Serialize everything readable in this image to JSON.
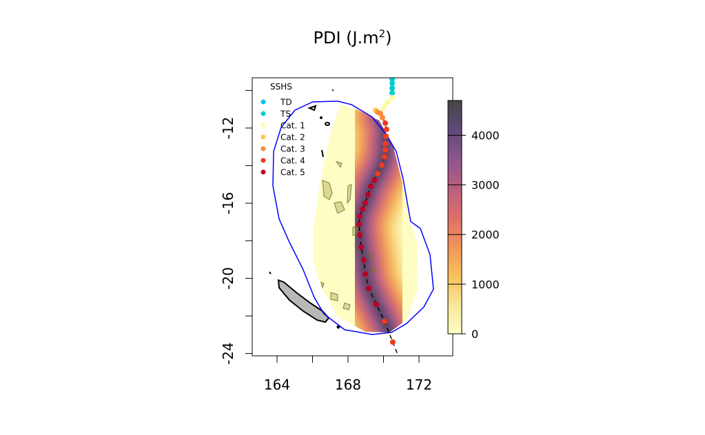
{
  "chart_data": {
    "type": "map",
    "title": "PDI (J.m",
    "title_superscript": "2",
    "title_suffix": ")",
    "xlim": [
      162.6,
      173.9
    ],
    "ylim": [
      -24.1,
      -9.3
    ],
    "x_ticks": [
      164,
      166,
      168,
      170,
      172
    ],
    "x_tick_labels": [
      "164",
      "168",
      "172"
    ],
    "x_tick_label_values": [
      164,
      168,
      172
    ],
    "y_ticks": [
      -10,
      -12,
      -14,
      -16,
      -18,
      -20,
      -22,
      -24
    ],
    "y_tick_labels": [
      "-12",
      "-16",
      "-20",
      "-24"
    ],
    "y_tick_label_values": [
      -12,
      -16,
      -20,
      -24
    ],
    "colorbar": {
      "range": [
        0,
        4700
      ],
      "ticks": [
        0,
        1000,
        2000,
        3000,
        4000
      ],
      "tick_labels": [
        "0",
        "1000",
        "2000",
        "3000",
        "4000"
      ],
      "colors": [
        "#fdfdc4",
        "#f9e79a",
        "#f8c05a",
        "#f0955a",
        "#dd6e6a",
        "#b85f80",
        "#8c5590",
        "#5f4a78",
        "#3c3c3c"
      ]
    },
    "legend": {
      "title": "SSHS",
      "position": "top-left",
      "entries": [
        {
          "label": "TD",
          "color": "#00c5f0"
        },
        {
          "label": "TS",
          "color": "#00cdcd"
        },
        {
          "label": "Cat. 1",
          "color": "#fdfaa8"
        },
        {
          "label": "Cat. 2",
          "color": "#fec94d"
        },
        {
          "label": "Cat. 3",
          "color": "#fd8d3c"
        },
        {
          "label": "Cat. 4",
          "color": "#f03b20"
        },
        {
          "label": "Cat. 5",
          "color": "#bd0026"
        }
      ]
    },
    "envelope_color": "#0000ff",
    "track": [
      {
        "lon": 170.49,
        "lat": -9.4,
        "cat": "TS"
      },
      {
        "lon": 170.49,
        "lat": -9.62,
        "cat": "TS"
      },
      {
        "lon": 170.49,
        "lat": -9.88,
        "cat": "TS"
      },
      {
        "lon": 170.49,
        "lat": -10.13,
        "cat": "TS"
      },
      {
        "lon": 170.49,
        "lat": -10.39,
        "cat": "Cat. 1"
      },
      {
        "lon": 170.25,
        "lat": -10.61,
        "cat": "Cat. 1"
      },
      {
        "lon": 170.1,
        "lat": -10.79,
        "cat": "Cat. 1"
      },
      {
        "lon": 169.98,
        "lat": -10.97,
        "cat": "Cat. 1"
      },
      {
        "lon": 169.55,
        "lat": -11.05,
        "cat": "Cat. 2"
      },
      {
        "lon": 169.67,
        "lat": -11.16,
        "cat": "Cat. 3"
      },
      {
        "lon": 169.83,
        "lat": -11.23,
        "cat": "Cat. 3"
      },
      {
        "lon": 169.94,
        "lat": -11.45,
        "cat": "Cat. 3"
      },
      {
        "lon": 170.1,
        "lat": -11.74,
        "cat": "Cat. 4"
      },
      {
        "lon": 170.17,
        "lat": -12.07,
        "cat": "Cat. 4"
      },
      {
        "lon": 170.14,
        "lat": -12.44,
        "cat": "Cat. 4"
      },
      {
        "lon": 170.1,
        "lat": -12.84,
        "cat": "Cat. 4"
      },
      {
        "lon": 170.1,
        "lat": -13.17,
        "cat": "Cat. 4"
      },
      {
        "lon": 170.06,
        "lat": -13.54,
        "cat": "Cat. 4"
      },
      {
        "lon": 169.9,
        "lat": -13.98,
        "cat": "Cat. 4"
      },
      {
        "lon": 169.67,
        "lat": -14.42,
        "cat": "Cat. 4"
      },
      {
        "lon": 169.48,
        "lat": -14.78,
        "cat": "Cat. 5"
      },
      {
        "lon": 169.28,
        "lat": -15.11,
        "cat": "Cat. 5"
      },
      {
        "lon": 169.13,
        "lat": -15.55,
        "cat": "Cat. 5"
      },
      {
        "lon": 168.97,
        "lat": -15.99,
        "cat": "Cat. 5"
      },
      {
        "lon": 168.82,
        "lat": -16.32,
        "cat": "Cat. 5"
      },
      {
        "lon": 168.66,
        "lat": -16.69,
        "cat": "Cat. 5"
      },
      {
        "lon": 168.62,
        "lat": -17.13,
        "cat": "Cat. 5"
      },
      {
        "lon": 168.66,
        "lat": -17.68,
        "cat": "Cat. 5"
      },
      {
        "lon": 168.74,
        "lat": -18.34,
        "cat": "Cat. 5"
      },
      {
        "lon": 168.89,
        "lat": -19.03,
        "cat": "Cat. 5"
      },
      {
        "lon": 168.97,
        "lat": -19.77,
        "cat": "Cat. 5"
      },
      {
        "lon": 169.17,
        "lat": -20.53,
        "cat": "Cat. 5"
      },
      {
        "lon": 169.59,
        "lat": -21.38,
        "cat": "Cat. 5"
      },
      {
        "lon": 170.06,
        "lat": -22.29,
        "cat": "Cat. 4"
      },
      {
        "lon": 170.52,
        "lat": -23.39,
        "cat": "Cat. 4"
      }
    ],
    "track_extension": {
      "lon": 170.83,
      "lat": -24.12
    }
  }
}
